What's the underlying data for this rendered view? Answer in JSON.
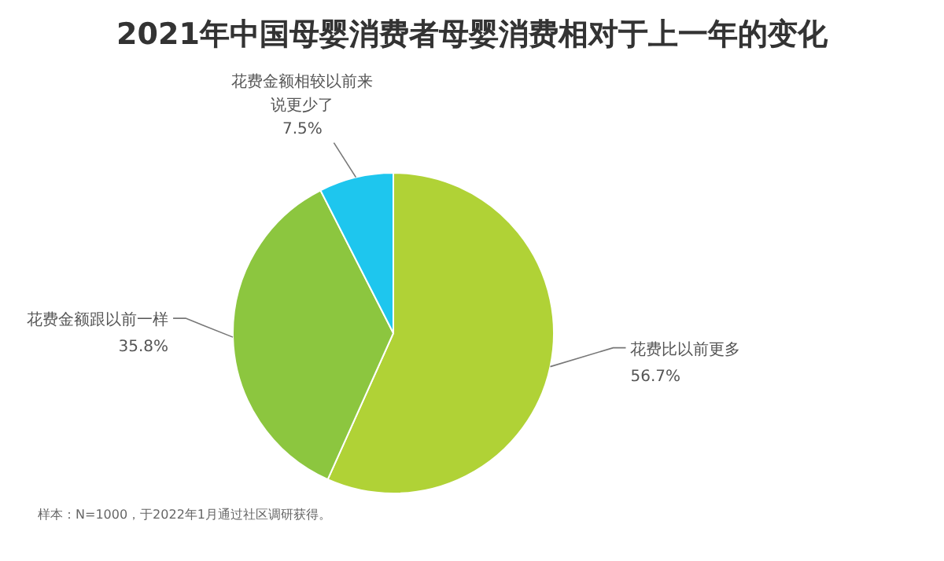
{
  "chart_data": {
    "type": "pie",
    "title": "2021年中国母婴消费者母婴消费相对于上一年的变化",
    "categories": [
      "花费比以前更多",
      "花费金额跟以前一样",
      "花费金额相较以前来说更少了"
    ],
    "values": [
      56.7,
      35.8,
      7.5
    ],
    "colors": [
      "#b0d236",
      "#8cc63f",
      "#1ec6ee"
    ],
    "value_labels": [
      "56.7%",
      "35.8%",
      "7.5%"
    ],
    "annotations": [
      "样本：N=1000，于2022年1月通过社区调研获得。"
    ]
  }
}
